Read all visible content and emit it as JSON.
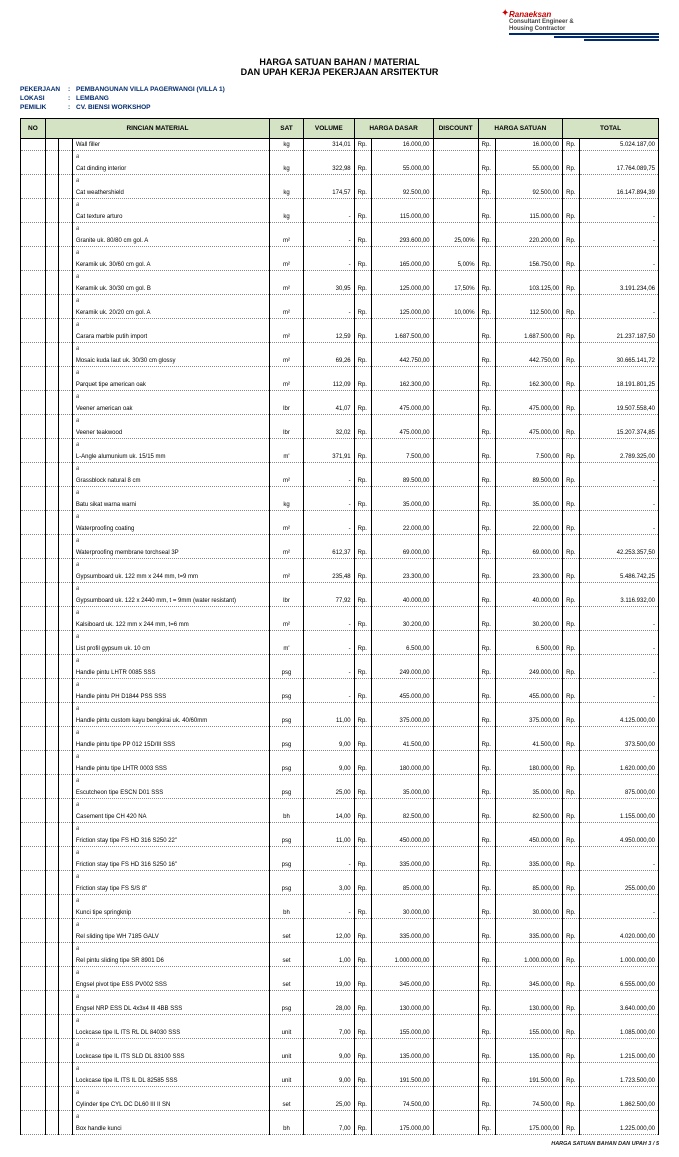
{
  "logo": {
    "name": "Ranaeksan",
    "sub1": "Consultant Engineer &",
    "sub2": "Housing Contractor"
  },
  "title1": "HARGA SATUAN BAHAN / MATERIAL",
  "title2": "DAN UPAH KERJA PEKERJAAN ARSITEKTUR",
  "meta": {
    "pekerjaan_k": "PEKERJAAN",
    "pekerjaan_v": "PEMBANGUNAN VILLA PAGERWANGI (VILLA 1)",
    "lokasi_k": "LOKASI",
    "lokasi_v": "LEMBANG",
    "pemilik_k": "PEMILIK",
    "pemilik_v": "CV. BIENSI WORKSHOP"
  },
  "headers": {
    "no": "NO",
    "rincian": "RINCIAN MATERIAL",
    "sat": "SAT",
    "volume": "VOLUME",
    "harga_dasar": "HARGA DASAR",
    "discount": "DISCOUNT",
    "harga_satuan": "HARGA SATUAN",
    "total": "TOTAL"
  },
  "currency": "Rp.",
  "rows": [
    {
      "mat": "Wall filler",
      "sat": "kg",
      "vol": "314,01",
      "hd": "16.000,00",
      "disc": "",
      "hs": "16.000,00",
      "tot": "5.024.187,00"
    },
    {
      "mat": "Cat dinding interior",
      "sat": "kg",
      "vol": "322,98",
      "hd": "55.000,00",
      "disc": "",
      "hs": "55.000,00",
      "tot": "17.764.089,75"
    },
    {
      "mat": "Cat weathershield",
      "sat": "kg",
      "vol": "174,57",
      "hd": "92.500,00",
      "disc": "",
      "hs": "92.500,00",
      "tot": "16.147.894,39"
    },
    {
      "mat": "Cat texture arturo",
      "sat": "kg",
      "vol": "-",
      "hd": "115.000,00",
      "disc": "",
      "hs": "115.000,00",
      "tot": "-"
    },
    {
      "mat": "Granite uk. 80/80 cm gol. A",
      "sat": "m²",
      "vol": "-",
      "hd": "293.600,00",
      "disc": "25,00%",
      "hs": "220.200,00",
      "tot": "-"
    },
    {
      "mat": "Keramik uk. 30/60 cm gol. A",
      "sat": "m²",
      "vol": "-",
      "hd": "165.000,00",
      "disc": "5,00%",
      "hs": "156.750,00",
      "tot": "-"
    },
    {
      "mat": "Keramik uk. 30/30 cm gol. B",
      "sat": "m²",
      "vol": "30,95",
      "hd": "125.000,00",
      "disc": "17,50%",
      "hs": "103.125,00",
      "tot": "3.191.234,06"
    },
    {
      "mat": "Keramik uk. 20/20 cm gol. A",
      "sat": "m²",
      "vol": "-",
      "hd": "125.000,00",
      "disc": "10,00%",
      "hs": "112.500,00",
      "tot": "-"
    },
    {
      "mat": "Carara marble putih import",
      "sat": "m²",
      "vol": "12,59",
      "hd": "1.687.500,00",
      "disc": "",
      "hs": "1.687.500,00",
      "tot": "21.237.187,50"
    },
    {
      "mat": "Mosaic kuda laut uk. 30/30 cm glossy",
      "sat": "m²",
      "vol": "69,26",
      "hd": "442.750,00",
      "disc": "",
      "hs": "442.750,00",
      "tot": "30.665.141,72"
    },
    {
      "mat": "Parquet tipe american oak",
      "sat": "m²",
      "vol": "112,09",
      "hd": "162.300,00",
      "disc": "",
      "hs": "162.300,00",
      "tot": "18.191.801,25"
    },
    {
      "mat": "Veener american oak",
      "sat": "lbr",
      "vol": "41,07",
      "hd": "475.000,00",
      "disc": "",
      "hs": "475.000,00",
      "tot": "19.507.558,40"
    },
    {
      "mat": "Veener teakwood",
      "sat": "lbr",
      "vol": "32,02",
      "hd": "475.000,00",
      "disc": "",
      "hs": "475.000,00",
      "tot": "15.207.374,85"
    },
    {
      "mat": "L-Angle alumunium uk. 15/15 mm",
      "sat": "m'",
      "vol": "371,91",
      "hd": "7.500,00",
      "disc": "",
      "hs": "7.500,00",
      "tot": "2.789.325,00"
    },
    {
      "mat": "Grassblock natural 8 cm",
      "sat": "m²",
      "vol": "-",
      "hd": "89.500,00",
      "disc": "",
      "hs": "89.500,00",
      "tot": "-"
    },
    {
      "mat": "Batu sikat warna warni",
      "sat": "kg",
      "vol": "-",
      "hd": "35.000,00",
      "disc": "",
      "hs": "35.000,00",
      "tot": "-"
    },
    {
      "mat": "Waterproofing coating",
      "sat": "m²",
      "vol": "-",
      "hd": "22.000,00",
      "disc": "",
      "hs": "22.000,00",
      "tot": "-"
    },
    {
      "mat": "Waterproofing membrane torchseal 3P",
      "sat": "m²",
      "vol": "612,37",
      "hd": "69.000,00",
      "disc": "",
      "hs": "69.000,00",
      "tot": "42.253.357,50"
    },
    {
      "mat": "Gypsumboard uk. 122 mm x 244 mm, t=9 mm",
      "sat": "m²",
      "vol": "235,48",
      "hd": "23.300,00",
      "disc": "",
      "hs": "23.300,00",
      "tot": "5.486.742,25"
    },
    {
      "mat": "Gypsumboard uk. 122 x 2440 mm, t = 9mm (water resistant)",
      "sat": "lbr",
      "vol": "77,92",
      "hd": "40.000,00",
      "disc": "",
      "hs": "40.000,00",
      "tot": "3.116.932,00"
    },
    {
      "mat": "Kalsiboard uk. 122 mm x 244 mm, t=6 mm",
      "sat": "m²",
      "vol": "-",
      "hd": "30.200,00",
      "disc": "",
      "hs": "30.200,00",
      "tot": "-"
    },
    {
      "mat": "List profil gypsum uk. 10 cm",
      "sat": "m'",
      "vol": "-",
      "hd": "6.500,00",
      "disc": "",
      "hs": "6.500,00",
      "tot": "-"
    },
    {
      "mat": "Handle pintu LHTR 0085 SSS",
      "sat": "psg",
      "vol": "-",
      "hd": "249.000,00",
      "disc": "",
      "hs": "249.000,00",
      "tot": "-"
    },
    {
      "mat": "Handle pintu PH D1844 PSS SSS",
      "sat": "psg",
      "vol": "-",
      "hd": "455.000,00",
      "disc": "",
      "hs": "455.000,00",
      "tot": "-"
    },
    {
      "mat": "Handle pintu custom kayu bengkirai uk. 40/60mm",
      "sat": "psg",
      "vol": "11,00",
      "hd": "375.000,00",
      "disc": "",
      "hs": "375.000,00",
      "tot": "4.125.000,00"
    },
    {
      "mat": "Handle pintu tipe PP 012 15D/III SSS",
      "sat": "psg",
      "vol": "9,00",
      "hd": "41.500,00",
      "disc": "",
      "hs": "41.500,00",
      "tot": "373.500,00"
    },
    {
      "mat": "Handle pintu tipe LHTR 0003 SSS",
      "sat": "psg",
      "vol": "9,00",
      "hd": "180.000,00",
      "disc": "",
      "hs": "180.000,00",
      "tot": "1.620.000,00"
    },
    {
      "mat": "Escutcheon tipe ESCN D01 SSS",
      "sat": "psg",
      "vol": "25,00",
      "hd": "35.000,00",
      "disc": "",
      "hs": "35.000,00",
      "tot": "875.000,00"
    },
    {
      "mat": "Casement tipe CH 420 NA",
      "sat": "bh",
      "vol": "14,00",
      "hd": "82.500,00",
      "disc": "",
      "hs": "82.500,00",
      "tot": "1.155.000,00"
    },
    {
      "mat": "Friction stay tipe FS HD 316 S250 22\"",
      "sat": "psg",
      "vol": "11,00",
      "hd": "450.000,00",
      "disc": "",
      "hs": "450.000,00",
      "tot": "4.950.000,00"
    },
    {
      "mat": "Friction stay tipe FS HD 316 S250 16\"",
      "sat": "psg",
      "vol": "-",
      "hd": "335.000,00",
      "disc": "",
      "hs": "335.000,00",
      "tot": "-"
    },
    {
      "mat": "Friction stay tipe FS S/S 8\"",
      "sat": "psg",
      "vol": "3,00",
      "hd": "85.000,00",
      "disc": "",
      "hs": "85.000,00",
      "tot": "255.000,00"
    },
    {
      "mat": "Kunci tipe springknip",
      "sat": "bh",
      "vol": "-",
      "hd": "30.000,00",
      "disc": "",
      "hs": "30.000,00",
      "tot": "-"
    },
    {
      "mat": "Rel sliding tipe WH 7185 GALV",
      "sat": "set",
      "vol": "12,00",
      "hd": "335.000,00",
      "disc": "",
      "hs": "335.000,00",
      "tot": "4.020.000,00"
    },
    {
      "mat": "Rel pintu sliding tipe SR 8901 D6",
      "sat": "set",
      "vol": "1,00",
      "hd": "1.000.000,00",
      "disc": "",
      "hs": "1.000.000,00",
      "tot": "1.000.000,00"
    },
    {
      "mat": "Engsel pivot tipe ESS PV002 SSS",
      "sat": "set",
      "vol": "19,00",
      "hd": "345.000,00",
      "disc": "",
      "hs": "345.000,00",
      "tot": "6.555.000,00"
    },
    {
      "mat": "Engsel NRP ESS DL 4x3x4 III 4BB SSS",
      "sat": "psg",
      "vol": "28,00",
      "hd": "130.000,00",
      "disc": "",
      "hs": "130.000,00",
      "tot": "3.640.000,00"
    },
    {
      "mat": "Lockcase tipe IL ITS RL DL 84030 SSS",
      "sat": "unit",
      "vol": "7,00",
      "hd": "155.000,00",
      "disc": "",
      "hs": "155.000,00",
      "tot": "1.085.000,00"
    },
    {
      "mat": "Lockcase tipe IL ITS SLD DL 83100 SSS",
      "sat": "unit",
      "vol": "9,00",
      "hd": "135.000,00",
      "disc": "",
      "hs": "135.000,00",
      "tot": "1.215.000,00"
    },
    {
      "mat": "Lockcase tipe IL ITS IL DL 82585 SSS",
      "sat": "unit",
      "vol": "9,00",
      "hd": "191.500,00",
      "disc": "",
      "hs": "191.500,00",
      "tot": "1.723.500,00"
    },
    {
      "mat": "Cylinder tipe CYL DC DL60 III II SN",
      "sat": "set",
      "vol": "25,00",
      "hd": "74.500,00",
      "disc": "",
      "hs": "74.500,00",
      "tot": "1.862.500,00"
    },
    {
      "mat": "Box handle kunci",
      "sat": "bh",
      "vol": "7,00",
      "hd": "175.000,00",
      "disc": "",
      "hs": "175.000,00",
      "tot": "1.225.000,00"
    }
  ],
  "alpha": "a",
  "footer_right": "HARGA SATUAN BAHAN DAN UPAH 3 / 5",
  "footer_left": ""
}
